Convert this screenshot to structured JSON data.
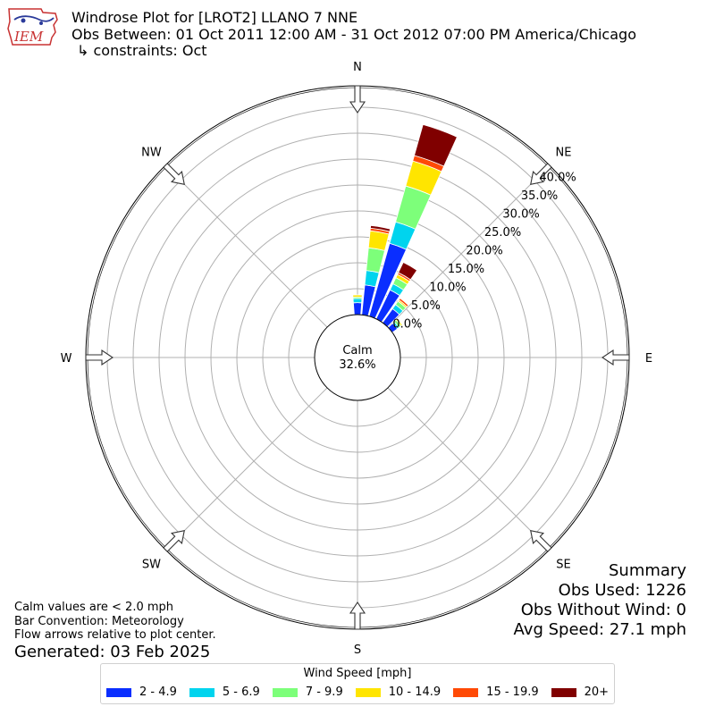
{
  "header": {
    "logo_text": "IEM",
    "title_line1": "Windrose Plot for [LROT2] LLANO 7 NNE",
    "title_line2": "Obs Between: 01 Oct 2011 12:00 AM - 31 Oct 2012 07:00 PM America/Chicago",
    "title_line3": "↳ constraints: Oct"
  },
  "notes": {
    "line1": "Calm values are < 2.0 mph",
    "line2": "Bar Convention: Meteorology",
    "line3": "Flow arrows relative to plot center.",
    "generated": "Generated: 03 Feb 2025"
  },
  "summary": {
    "title": "Summary",
    "obs_used": "Obs Used: 1226",
    "obs_without_wind": "Obs Without Wind: 0",
    "avg_speed": "Avg Speed: 27.1 mph"
  },
  "chart_data": {
    "type": "windrose",
    "calm_label": "Calm",
    "calm_value": "32.6%",
    "directions": [
      "N",
      "NE",
      "E",
      "SE",
      "S",
      "SW",
      "W",
      "NW"
    ],
    "radial_tick_labels": [
      "0.0%",
      "5.0%",
      "10.0%",
      "15.0%",
      "20.0%",
      "25.0%",
      "30.0%",
      "35.0%",
      "40.0%"
    ],
    "rmax": 40,
    "legend_title": "Wind Speed [mph]",
    "bins": [
      {
        "label": "2 - 4.9",
        "color": "#0a2eff"
      },
      {
        "label": "5 - 6.9",
        "color": "#00d4ee"
      },
      {
        "label": "7 - 9.9",
        "color": "#7dff7a"
      },
      {
        "label": "10 - 14.9",
        "color": "#ffe500"
      },
      {
        "label": "15 - 19.9",
        "color": "#ff4a06"
      },
      {
        "label": "20+",
        "color": "#800000"
      }
    ],
    "bars": [
      {
        "direction_deg": 0,
        "values": [
          2.3,
          0.8,
          0.3,
          0.4,
          0,
          0
        ]
      },
      {
        "direction_deg": 10,
        "values": [
          5.8,
          2.8,
          4.4,
          3.3,
          0.5,
          0.5
        ]
      },
      {
        "direction_deg": 20,
        "values": [
          14.6,
          4.3,
          7.2,
          5.0,
          1.1,
          6.2
        ]
      },
      {
        "direction_deg": 30,
        "values": [
          6.2,
          1.3,
          1.3,
          0.7,
          0.4,
          2.2
        ]
      },
      {
        "direction_deg": 40,
        "values": [
          3.3,
          1.0,
          0.8,
          0.3,
          0.4,
          0
        ]
      },
      {
        "direction_deg": 50,
        "values": [
          1.2,
          0.4,
          0.5,
          0.3,
          0,
          0
        ]
      }
    ]
  }
}
